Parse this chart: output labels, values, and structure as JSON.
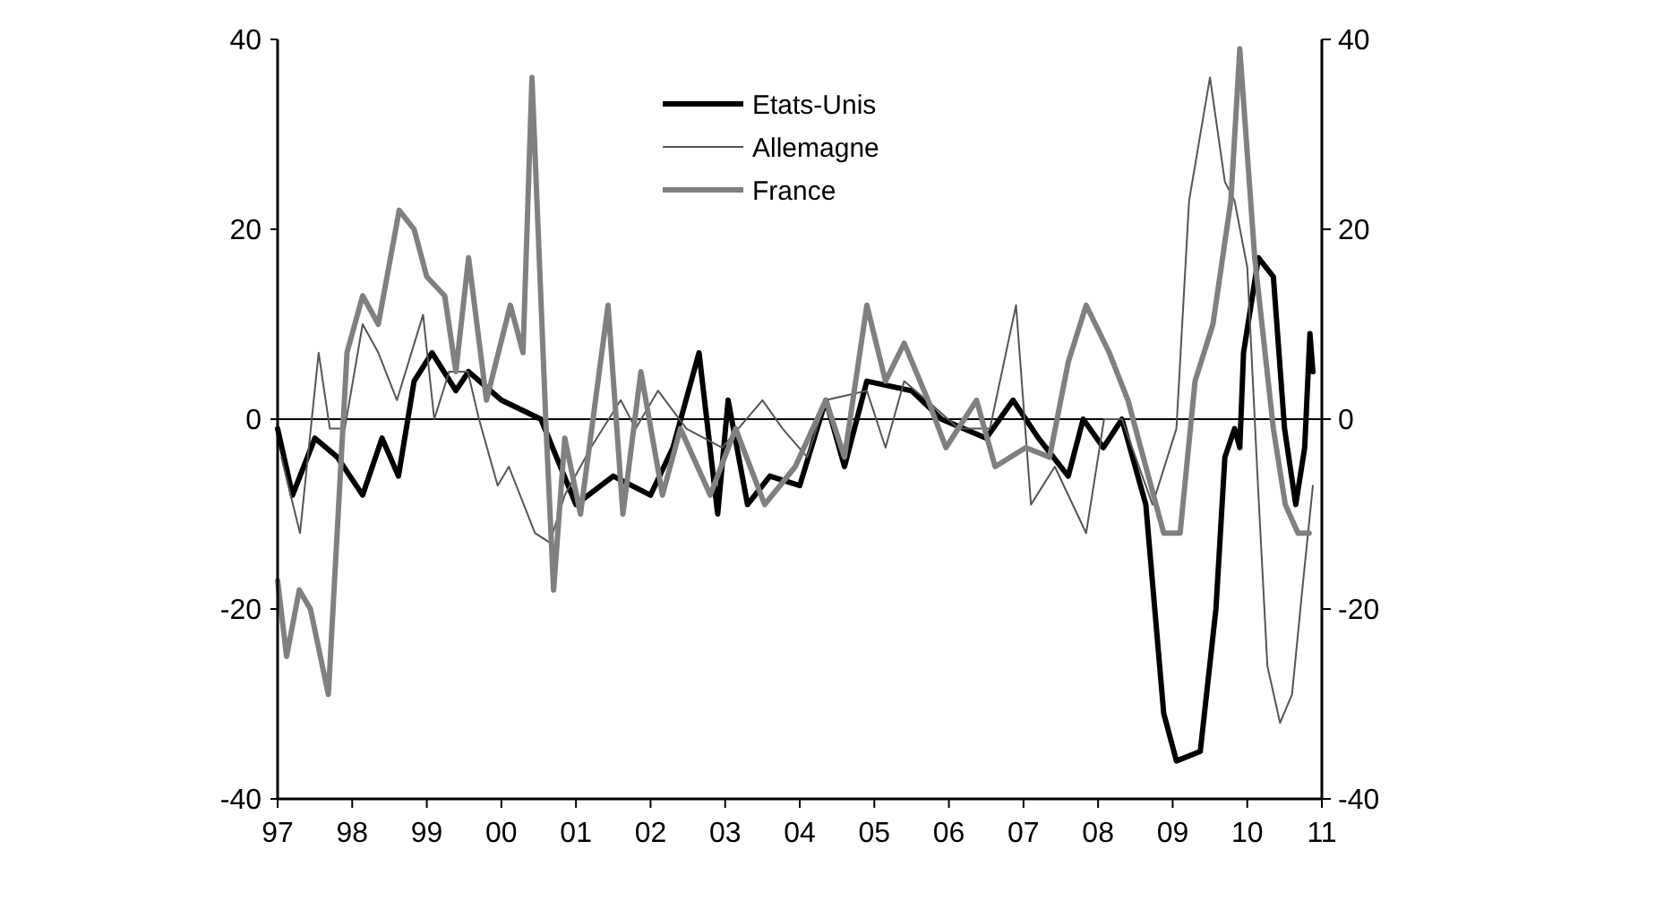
{
  "chart_data": {
    "type": "line",
    "legend": "top",
    "line_style": "solid",
    "xlim": [
      1997,
      2011
    ],
    "ylim": [
      -40,
      40
    ],
    "y2lim": [
      -40,
      40
    ],
    "xticks": [
      {
        "value": 1997,
        "label": "97"
      },
      {
        "value": 1998,
        "label": "98"
      },
      {
        "value": 1999,
        "label": "99"
      },
      {
        "value": 2000,
        "label": "00"
      },
      {
        "value": 2001,
        "label": "01"
      },
      {
        "value": 2002,
        "label": "02"
      },
      {
        "value": 2003,
        "label": "03"
      },
      {
        "value": 2004,
        "label": "04"
      },
      {
        "value": 2005,
        "label": "05"
      },
      {
        "value": 2006,
        "label": "06"
      },
      {
        "value": 2007,
        "label": "07"
      },
      {
        "value": 2008,
        "label": "08"
      },
      {
        "value": 2009,
        "label": "09"
      },
      {
        "value": 2010,
        "label": "10"
      },
      {
        "value": 2011,
        "label": "11"
      }
    ],
    "yticks": [
      -40,
      -20,
      0,
      20,
      40
    ],
    "y2ticks": [
      -40,
      -20,
      0,
      20,
      40
    ],
    "ref_lines": [
      {
        "axis": "y",
        "value": 0,
        "color": "#000000"
      }
    ],
    "series": [
      {
        "name": "Etats-Unis",
        "color": "#000000",
        "x": [
          1997.0,
          1997.2,
          1997.5,
          1997.8,
          1998.14,
          1998.4,
          1998.62,
          1998.83,
          1999.07,
          1999.39,
          1999.56,
          2000.0,
          2000.53,
          2001.0,
          2001.5,
          2002.0,
          2002.3,
          2002.65,
          2002.9,
          2003.04,
          2003.3,
          2003.6,
          2004.0,
          2004.35,
          2004.6,
          2004.9,
          2005.5,
          2005.9,
          2006.5,
          2006.86,
          2007.2,
          2007.6,
          2007.8,
          2008.07,
          2008.32,
          2008.64,
          2008.88,
          2009.05,
          2009.37,
          2009.58,
          2009.7,
          2009.83,
          2009.9,
          2009.95,
          2010.15,
          2010.35,
          2010.5,
          2010.65,
          2010.77,
          2010.84,
          2010.88
        ],
        "values": [
          -1,
          -8,
          -2,
          -4,
          -8,
          -2,
          -6,
          4,
          7,
          3,
          5,
          2,
          0,
          -9,
          -6,
          -8,
          -3,
          7,
          -10,
          2,
          -9,
          -6,
          -7,
          2,
          -5,
          4,
          3,
          0,
          -2,
          2,
          -2,
          -6,
          0,
          -3,
          0,
          -9,
          -31,
          -36,
          -35,
          -20,
          -4,
          -1,
          -3,
          7,
          17,
          15,
          -1,
          -9,
          -3,
          9,
          5
        ]
      },
      {
        "name": "Allemagne",
        "color": "#555555",
        "x": [
          1997.05,
          1997.3,
          1997.55,
          1997.7,
          1997.9,
          1998.14,
          1998.35,
          1998.6,
          1998.95,
          1999.1,
          1999.3,
          1999.55,
          1999.7,
          1999.95,
          2000.1,
          2000.45,
          2000.65,
          2000.85,
          2001.2,
          2001.6,
          2001.8,
          2002.1,
          2002.48,
          2002.96,
          2003.5,
          2003.77,
          2004.1,
          2004.35,
          2004.9,
          2005.15,
          2005.4,
          2005.7,
          2006.13,
          2006.55,
          2006.9,
          2007.1,
          2007.42,
          2007.84,
          2008.08,
          2008.32,
          2008.73,
          2009.05,
          2009.22,
          2009.5,
          2009.7,
          2009.83,
          2010.0,
          2010.15,
          2010.27,
          2010.44,
          2010.6,
          2010.75,
          2010.88
        ],
        "values": [
          -4,
          -12,
          7,
          -1,
          -1,
          10,
          7,
          2,
          11,
          0,
          5,
          5,
          0,
          -7,
          -5,
          -12,
          -13,
          -8,
          -3,
          2,
          -1,
          3,
          -1,
          -3,
          2,
          -1,
          -4,
          2,
          3,
          -3,
          4,
          2,
          -1,
          -1,
          12,
          -9,
          -5,
          -12,
          0,
          0,
          -9,
          -1,
          23,
          36,
          25,
          23,
          16,
          -8,
          -26,
          -32,
          -29,
          -17,
          -7
        ]
      },
      {
        "name": "France",
        "color": "#808080",
        "x": [
          1997.0,
          1997.12,
          1997.29,
          1997.44,
          1997.68,
          1997.93,
          1998.14,
          1998.35,
          1998.63,
          1998.83,
          1999.0,
          1999.24,
          1999.39,
          1999.56,
          1999.8,
          2000.12,
          2000.29,
          2000.41,
          2000.6,
          2000.7,
          2000.85,
          2001.06,
          2001.43,
          2001.63,
          2001.87,
          2002.16,
          2002.4,
          2002.8,
          2003.14,
          2003.53,
          2003.94,
          2004.35,
          2004.6,
          2004.9,
          2005.15,
          2005.4,
          2005.72,
          2005.96,
          2006.37,
          2006.62,
          2007.03,
          2007.35,
          2007.6,
          2007.84,
          2008.15,
          2008.4,
          2008.64,
          2008.88,
          2009.1,
          2009.3,
          2009.54,
          2009.78,
          2009.9,
          2010.1,
          2010.35,
          2010.51,
          2010.68,
          2010.83
        ],
        "values": [
          -17,
          -25,
          -18,
          -20,
          -29,
          7,
          13,
          10,
          22,
          20,
          15,
          13,
          5,
          17,
          2,
          12,
          7,
          36,
          -1,
          -18,
          -2,
          -10,
          12,
          -10,
          5,
          -8,
          -1,
          -8,
          -1,
          -9,
          -5,
          2,
          -4,
          12,
          4,
          8,
          2,
          -3,
          2,
          -5,
          -3,
          -4,
          6,
          12,
          7,
          2,
          -5,
          -12,
          -12,
          4,
          10,
          23,
          39,
          17,
          -1,
          -9,
          -12,
          -12
        ]
      }
    ]
  }
}
